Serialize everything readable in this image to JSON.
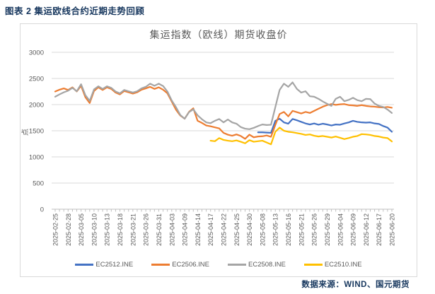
{
  "page": {
    "header": "图表 2 集运欧线合约近期走势回顾",
    "source": "数据来源：WIND、国元期货"
  },
  "colors": {
    "header_navy": "#17375E",
    "text_gray": "#595959",
    "gridline": "#D9D9D9",
    "axis_line": "#BFBFBF",
    "box_border": "#D9D9D9"
  },
  "chart_data": {
    "type": "line",
    "title": "集运指数（欧线）期货收盘价",
    "xlabel": "",
    "ylabel": "点",
    "ylim": [
      0,
      3000
    ],
    "ytick_step": 500,
    "grid": true,
    "legend_position": "bottom",
    "x_label_interval": 3,
    "categories": [
      "2025-02-25",
      "2025-02-26",
      "2025-02-27",
      "2025-02-28",
      "2025-03-03",
      "2025-03-04",
      "2025-03-05",
      "2025-03-06",
      "2025-03-07",
      "2025-03-10",
      "2025-03-11",
      "2025-03-12",
      "2025-03-13",
      "2025-03-14",
      "2025-03-17",
      "2025-03-18",
      "2025-03-19",
      "2025-03-20",
      "2025-03-21",
      "2025-03-24",
      "2025-03-25",
      "2025-03-26",
      "2025-03-27",
      "2025-03-28",
      "2025-03-31",
      "2025-04-01",
      "2025-04-02",
      "2025-04-03",
      "2025-04-07",
      "2025-04-08",
      "2025-04-09",
      "2025-04-10",
      "2025-04-11",
      "2025-04-14",
      "2025-04-15",
      "2025-04-16",
      "2025-04-17",
      "2025-04-18",
      "2025-04-21",
      "2025-04-22",
      "2025-04-23",
      "2025-04-24",
      "2025-04-25",
      "2025-04-28",
      "2025-04-29",
      "2025-04-30",
      "2025-05-06",
      "2025-05-07",
      "2025-05-08",
      "2025-05-09",
      "2025-05-12",
      "2025-05-13",
      "2025-05-14",
      "2025-05-15",
      "2025-05-16",
      "2025-05-19",
      "2025-05-20",
      "2025-05-21",
      "2025-05-22",
      "2025-05-23",
      "2025-05-26",
      "2025-05-27",
      "2025-05-28",
      "2025-05-29",
      "2025-05-30",
      "2025-06-03",
      "2025-06-04",
      "2025-06-05",
      "2025-06-06",
      "2025-06-09",
      "2025-06-10",
      "2025-06-11",
      "2025-06-12",
      "2025-06-13",
      "2025-06-16",
      "2025-06-17",
      "2025-06-18",
      "2025-06-19",
      "2025-06-20"
    ],
    "series": [
      {
        "name": "EC2512.INE",
        "color": "#4472C4",
        "values": [
          null,
          null,
          null,
          null,
          null,
          null,
          null,
          null,
          null,
          null,
          null,
          null,
          null,
          null,
          null,
          null,
          null,
          null,
          null,
          null,
          null,
          null,
          null,
          null,
          null,
          null,
          null,
          null,
          null,
          null,
          null,
          null,
          null,
          null,
          null,
          null,
          null,
          null,
          null,
          null,
          null,
          null,
          null,
          null,
          null,
          null,
          null,
          1470,
          1470,
          1465,
          1460,
          1690,
          1730,
          1660,
          1635,
          1725,
          1700,
          1670,
          1640,
          1620,
          1640,
          1615,
          1635,
          1620,
          1600,
          1620,
          1615,
          1640,
          1660,
          1690,
          1670,
          1660,
          1655,
          1660,
          1640,
          1630,
          1590,
          1560,
          1480
        ]
      },
      {
        "name": "EC2506.INE",
        "color": "#ED7D31",
        "values": [
          2250,
          2285,
          2310,
          2280,
          2330,
          2250,
          2360,
          2140,
          2030,
          2260,
          2330,
          2280,
          2330,
          2300,
          2230,
          2195,
          2260,
          2235,
          2210,
          2235,
          2285,
          2310,
          2340,
          2300,
          2330,
          2285,
          2215,
          2060,
          1900,
          1790,
          1730,
          1860,
          1930,
          1690,
          1650,
          1600,
          1585,
          1565,
          1545,
          1460,
          1425,
          1405,
          1430,
          1400,
          1345,
          1425,
          1375,
          1390,
          1395,
          1410,
          1385,
          1610,
          1820,
          1860,
          1775,
          1880,
          1855,
          1830,
          1860,
          1840,
          1880,
          1920,
          1960,
          1990,
          2010,
          1995,
          2005,
          2010,
          1990,
          1985,
          1975,
          1990,
          1975,
          1965,
          1960,
          1950,
          1945,
          1955,
          1940
        ]
      },
      {
        "name": "EC2508.INE",
        "color": "#A5A5A5",
        "values": [
          2150,
          2195,
          2235,
          2265,
          2320,
          2255,
          2390,
          2180,
          2070,
          2290,
          2350,
          2300,
          2350,
          2320,
          2250,
          2215,
          2280,
          2255,
          2230,
          2255,
          2310,
          2340,
          2400,
          2360,
          2400,
          2355,
          2250,
          2080,
          1950,
          1800,
          1730,
          1855,
          1910,
          1795,
          1720,
          1660,
          1645,
          1690,
          1725,
          1660,
          1715,
          1660,
          1635,
          1570,
          1540,
          1530,
          1555,
          1590,
          1620,
          1610,
          1615,
          1950,
          2280,
          2400,
          2340,
          2425,
          2300,
          2230,
          2255,
          2160,
          2150,
          2110,
          2060,
          2015,
          1975,
          2110,
          2150,
          2065,
          2090,
          2130,
          2085,
          2065,
          2110,
          2105,
          2020,
          1975,
          1955,
          1905,
          1840
        ]
      },
      {
        "name": "EC2510.INE",
        "color": "#FFC000",
        "values": [
          null,
          null,
          null,
          null,
          null,
          null,
          null,
          null,
          null,
          null,
          null,
          null,
          null,
          null,
          null,
          null,
          null,
          null,
          null,
          null,
          null,
          null,
          null,
          null,
          null,
          null,
          null,
          null,
          null,
          null,
          null,
          null,
          null,
          null,
          null,
          null,
          1310,
          1300,
          1360,
          1325,
          1310,
          1300,
          1315,
          1290,
          1260,
          1320,
          1290,
          1300,
          1310,
          1275,
          1240,
          1480,
          1560,
          1500,
          1480,
          1470,
          1455,
          1440,
          1420,
          1430,
          1405,
          1390,
          1400,
          1385,
          1370,
          1390,
          1365,
          1340,
          1360,
          1385,
          1400,
          1435,
          1430,
          1420,
          1400,
          1390,
          1370,
          1360,
          1295
        ]
      }
    ]
  }
}
